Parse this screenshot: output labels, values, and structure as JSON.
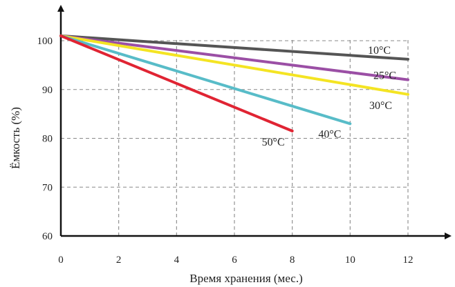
{
  "chart_data": {
    "type": "line",
    "xlabel": "Время хранения (мес.)",
    "ylabel": "Ёмкость (%)",
    "xlim": [
      0,
      12
    ],
    "ylim": [
      60,
      100
    ],
    "x_ticks": [
      "0",
      "2",
      "4",
      "6",
      "8",
      "10",
      "12"
    ],
    "y_ticks": [
      "60",
      "70",
      "80",
      "90",
      "100"
    ],
    "grid": true,
    "series": [
      {
        "name": "10°C",
        "color": "#555555",
        "x": [
          0,
          12
        ],
        "y": [
          101,
          96.2
        ]
      },
      {
        "name": "25°C",
        "color": "#9b4fa5",
        "x": [
          0,
          12
        ],
        "y": [
          101,
          92
        ]
      },
      {
        "name": "30°C",
        "color": "#f4e423",
        "x": [
          0,
          12
        ],
        "y": [
          101,
          89
        ]
      },
      {
        "name": "40°C",
        "color": "#58bcc8",
        "x": [
          0,
          10
        ],
        "y": [
          101,
          83
        ]
      },
      {
        "name": "50°C",
        "color": "#e02433",
        "x": [
          0,
          8
        ],
        "y": [
          101,
          81.5
        ]
      }
    ]
  }
}
